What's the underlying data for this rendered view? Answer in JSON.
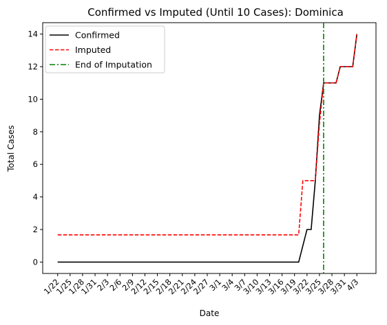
{
  "chart_data": {
    "type": "line",
    "title": "Confirmed vs Imputed (Until 10 Cases): Dominica",
    "xlabel": "Date",
    "ylabel": "Total Cases",
    "x_start": "1/22",
    "x_tick_labels": [
      "1/22",
      "1/25",
      "1/28",
      "1/31",
      "2/3",
      "2/6",
      "2/9",
      "2/12",
      "2/15",
      "2/18",
      "2/21",
      "2/24",
      "2/27",
      "3/1",
      "3/4",
      "3/7",
      "3/10",
      "3/13",
      "3/16",
      "3/19",
      "3/22",
      "3/25",
      "3/28",
      "3/31",
      "4/3"
    ],
    "ylim": [
      -0.7,
      14.7
    ],
    "y_ticks": [
      0,
      2,
      4,
      6,
      8,
      10,
      12,
      14
    ],
    "grid": false,
    "legend_position": "top-left",
    "series": [
      {
        "name": "Confirmed",
        "color": "#000000",
        "style": "solid",
        "points": [
          [
            "1/22",
            0
          ],
          [
            "3/20",
            0
          ],
          [
            "3/22",
            2
          ],
          [
            "3/23",
            2
          ],
          [
            "3/24",
            5
          ],
          [
            "3/25",
            9
          ],
          [
            "3/26",
            11
          ],
          [
            "3/29",
            11
          ],
          [
            "3/30",
            12
          ],
          [
            "4/2",
            12
          ],
          [
            "4/3",
            14
          ]
        ]
      },
      {
        "name": "Imputed",
        "color": "#ff0000",
        "style": "dashed",
        "points": [
          [
            "1/22",
            1.67
          ],
          [
            "3/20",
            1.67
          ],
          [
            "3/21",
            5
          ],
          [
            "3/23",
            5
          ],
          [
            "3/24",
            5
          ],
          [
            "3/25",
            8.5
          ],
          [
            "3/26",
            11
          ],
          [
            "3/29",
            11
          ],
          [
            "3/30",
            12
          ],
          [
            "4/2",
            12
          ],
          [
            "4/3",
            14
          ]
        ]
      },
      {
        "name": "End of Imputation",
        "color": "#008000",
        "style": "dashdot",
        "vertical_at": "3/26"
      }
    ]
  }
}
